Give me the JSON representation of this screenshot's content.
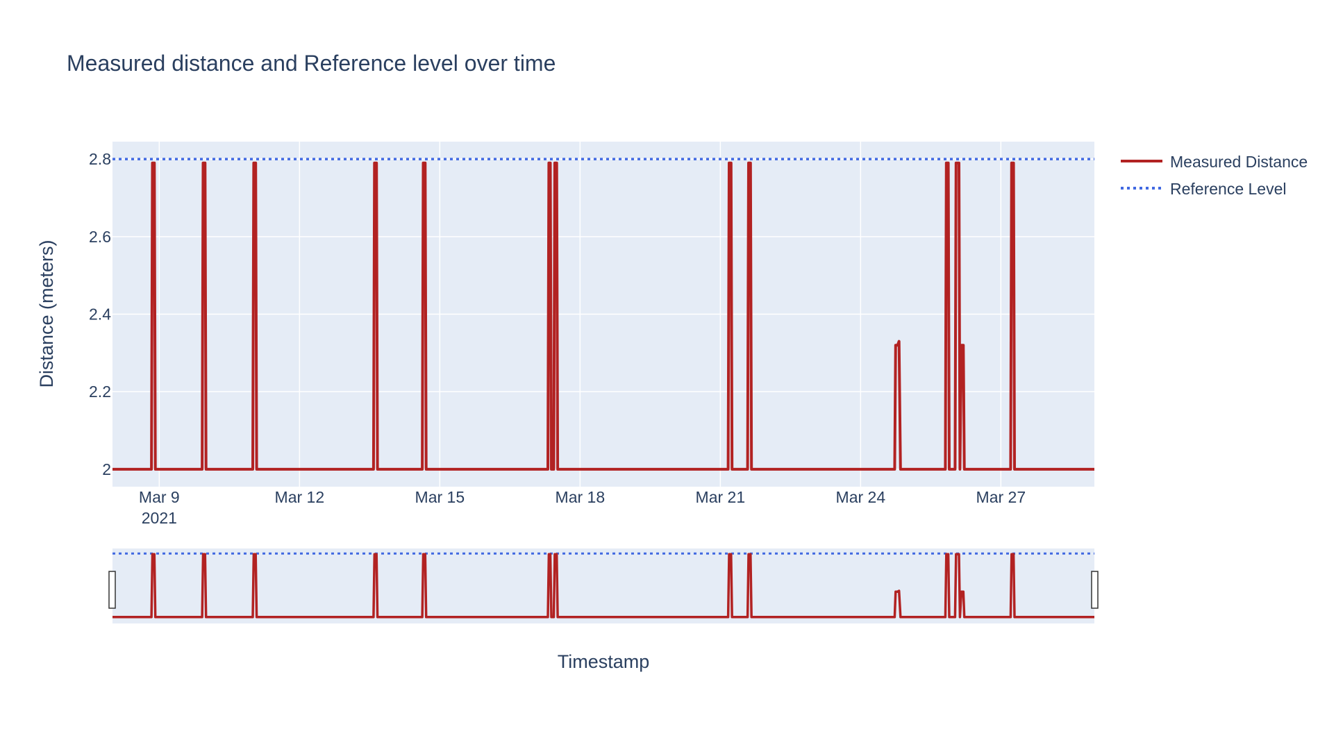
{
  "chart_data": {
    "type": "line",
    "title": "Measured distance and Reference level over time",
    "xlabel": "Timestamp",
    "ylabel": "Distance (meters)",
    "x_type": "date",
    "xlim": [
      "2021-03-08 00:00",
      "2021-03-29 00:00"
    ],
    "ylim": [
      1.955,
      2.845
    ],
    "x_ticks": [
      {
        "value": "2021-03-09",
        "label": "Mar 9",
        "sublabel": "2021"
      },
      {
        "value": "2021-03-12",
        "label": "Mar 12"
      },
      {
        "value": "2021-03-15",
        "label": "Mar 15"
      },
      {
        "value": "2021-03-18",
        "label": "Mar 18"
      },
      {
        "value": "2021-03-21",
        "label": "Mar 21"
      },
      {
        "value": "2021-03-24",
        "label": "Mar 24"
      },
      {
        "value": "2021-03-27",
        "label": "Mar 27"
      }
    ],
    "y_ticks": [
      {
        "value": 2.0,
        "label": "2"
      },
      {
        "value": 2.2,
        "label": "2.2"
      },
      {
        "value": 2.4,
        "label": "2.4"
      },
      {
        "value": 2.6,
        "label": "2.6"
      },
      {
        "value": 2.8,
        "label": "2.8"
      }
    ],
    "grid": true,
    "legend_position": "top-right",
    "rangeslider": true,
    "series": [
      {
        "name": "Measured Distance",
        "color": "#b22222",
        "dash": "solid",
        "points": [
          [
            "2021-03-08 00:00",
            2.0
          ],
          [
            "2021-03-08 20:00",
            2.0
          ],
          [
            "2021-03-08 20:30",
            2.79
          ],
          [
            "2021-03-08 21:30",
            2.79
          ],
          [
            "2021-03-08 22:00",
            2.0
          ],
          [
            "2021-03-09 22:00",
            2.0
          ],
          [
            "2021-03-09 22:30",
            2.79
          ],
          [
            "2021-03-09 23:30",
            2.79
          ],
          [
            "2021-03-10 00:00",
            2.0
          ],
          [
            "2021-03-11 00:00",
            2.0
          ],
          [
            "2021-03-11 00:30",
            2.79
          ],
          [
            "2021-03-11 01:30",
            2.79
          ],
          [
            "2021-03-11 02:00",
            2.0
          ],
          [
            "2021-03-13 14:00",
            2.0
          ],
          [
            "2021-03-13 14:30",
            2.79
          ],
          [
            "2021-03-13 15:30",
            2.79
          ],
          [
            "2021-03-13 16:00",
            2.0
          ],
          [
            "2021-03-14 15:00",
            2.0
          ],
          [
            "2021-03-14 15:30",
            2.79
          ],
          [
            "2021-03-14 16:30",
            2.79
          ],
          [
            "2021-03-14 17:00",
            2.0
          ],
          [
            "2021-03-17 07:30",
            2.0
          ],
          [
            "2021-03-17 08:00",
            2.79
          ],
          [
            "2021-03-17 08:45",
            2.79
          ],
          [
            "2021-03-17 09:15",
            2.0
          ],
          [
            "2021-03-17 10:30",
            2.0
          ],
          [
            "2021-03-17 11:00",
            2.79
          ],
          [
            "2021-03-17 12:00",
            2.79
          ],
          [
            "2021-03-17 12:30",
            2.0
          ],
          [
            "2021-03-21 04:00",
            2.0
          ],
          [
            "2021-03-21 04:30",
            2.79
          ],
          [
            "2021-03-21 05:30",
            2.79
          ],
          [
            "2021-03-21 06:00",
            2.0
          ],
          [
            "2021-03-21 14:00",
            2.0
          ],
          [
            "2021-03-21 14:30",
            2.79
          ],
          [
            "2021-03-21 15:30",
            2.79
          ],
          [
            "2021-03-21 16:00",
            2.0
          ],
          [
            "2021-03-24 17:30",
            2.0
          ],
          [
            "2021-03-24 18:00",
            2.32
          ],
          [
            "2021-03-24 19:00",
            2.32
          ],
          [
            "2021-03-24 19:45",
            2.33
          ],
          [
            "2021-03-24 20:30",
            2.0
          ],
          [
            "2021-03-25 19:30",
            2.0
          ],
          [
            "2021-03-25 20:00",
            2.79
          ],
          [
            "2021-03-25 21:00",
            2.79
          ],
          [
            "2021-03-25 21:30",
            2.0
          ],
          [
            "2021-03-26 00:30",
            2.0
          ],
          [
            "2021-03-26 01:00",
            2.79
          ],
          [
            "2021-03-26 02:30",
            2.79
          ],
          [
            "2021-03-26 03:00",
            2.0
          ],
          [
            "2021-03-26 03:45",
            2.32
          ],
          [
            "2021-03-26 04:45",
            2.32
          ],
          [
            "2021-03-26 05:15",
            2.0
          ],
          [
            "2021-03-27 05:00",
            2.0
          ],
          [
            "2021-03-27 05:30",
            2.79
          ],
          [
            "2021-03-27 06:30",
            2.79
          ],
          [
            "2021-03-27 07:00",
            2.0
          ],
          [
            "2021-03-29 00:00",
            2.0
          ]
        ]
      },
      {
        "name": "Reference Level",
        "color": "#4169e1",
        "dash": "dot",
        "points": [
          [
            "2021-03-08 00:00",
            2.8
          ],
          [
            "2021-03-29 00:00",
            2.8
          ]
        ]
      }
    ]
  }
}
